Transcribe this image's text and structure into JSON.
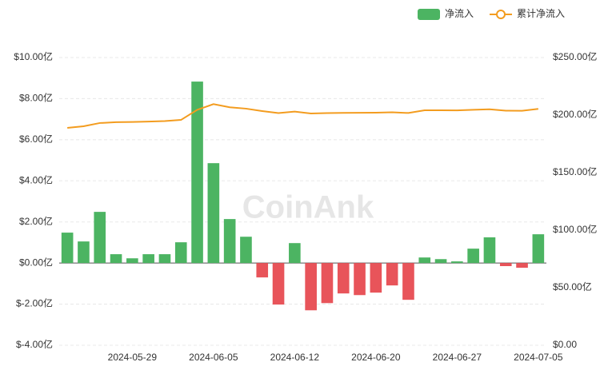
{
  "chart_data": {
    "type": "bar-line",
    "watermark": "CoinAnk",
    "categories": [
      null,
      null,
      null,
      null,
      "2024-05-29",
      null,
      null,
      null,
      null,
      "2024-06-05",
      null,
      null,
      null,
      null,
      "2024-06-12",
      null,
      null,
      null,
      null,
      "2024-06-20",
      null,
      null,
      null,
      null,
      "2024-06-27",
      null,
      null,
      null,
      null,
      "2024-07-05"
    ],
    "series": [
      {
        "name": "净流入",
        "type": "bar",
        "color": "#4cb462",
        "negative_color": "#e8545a",
        "values": [
          1.48,
          1.05,
          2.49,
          0.43,
          0.23,
          0.43,
          0.43,
          1.01,
          8.83,
          4.86,
          2.14,
          1.28,
          -0.7,
          -2.02,
          0.97,
          -2.3,
          -1.95,
          -1.48,
          -1.56,
          -1.44,
          -1.09,
          -1.79,
          0.27,
          0.19,
          0.08,
          0.7,
          1.25,
          -0.15,
          -0.23,
          1.4
        ]
      },
      {
        "name": "累计净流入",
        "type": "line",
        "axis": "y2",
        "color": "#f39c1f",
        "values": [
          188.9,
          190.3,
          193.1,
          193.8,
          194.0,
          194.4,
          194.8,
          195.8,
          204.6,
          209.5,
          206.8,
          205.6,
          203.5,
          201.7,
          203.0,
          201.4,
          201.7,
          201.9,
          202.0,
          202.1,
          202.4,
          201.8,
          204.2,
          204.2,
          204.1,
          204.6,
          205.0,
          203.8,
          203.7,
          205.4
        ]
      }
    ],
    "ylim": [
      -4,
      10
    ],
    "yticks": [
      {
        "value": -4,
        "label": "$-4.00亿"
      },
      {
        "value": -2,
        "label": "$-2.00亿"
      },
      {
        "value": 0,
        "label": "$0.00亿"
      },
      {
        "value": 2,
        "label": "$2.00亿"
      },
      {
        "value": 4,
        "label": "$4.00亿"
      },
      {
        "value": 6,
        "label": "$6.00亿"
      },
      {
        "value": 8,
        "label": "$8.00亿"
      },
      {
        "value": 10,
        "label": "$10.00亿"
      }
    ],
    "y2lim": [
      0,
      250
    ],
    "y2ticks": [
      {
        "value": 0,
        "label": "$0.00"
      },
      {
        "value": 50,
        "label": "$50.00亿"
      },
      {
        "value": 100,
        "label": "$100.00亿"
      },
      {
        "value": 150,
        "label": "$150.00亿"
      },
      {
        "value": 200,
        "label": "$200.00亿"
      },
      {
        "value": 250,
        "label": "$250.00亿"
      }
    ],
    "grid": true,
    "legend": "top-right"
  }
}
